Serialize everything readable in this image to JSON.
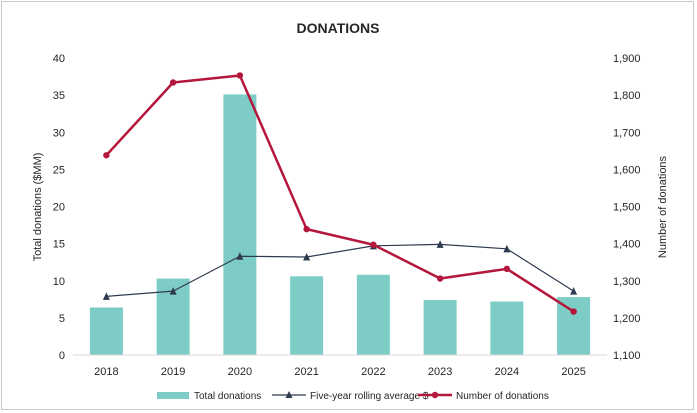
{
  "chart_data": {
    "title": "DONATIONS",
    "type": "bar+line",
    "categories": [
      "2018",
      "2019",
      "2020",
      "2021",
      "2022",
      "2023",
      "2024",
      "2025"
    ],
    "ylabel": "Total donations ($MM)",
    "y2label": "Number of donations",
    "ylim": [
      0,
      40
    ],
    "y2lim": [
      1100,
      1900
    ],
    "yticks": [
      "0",
      "5",
      "10",
      "15",
      "20",
      "25",
      "30",
      "35",
      "40"
    ],
    "y2ticks": [
      "1,100",
      "1,200",
      "1,300",
      "1,400",
      "1,500",
      "1,600",
      "1,700",
      "1,800",
      "1,900"
    ],
    "grid": false,
    "legend_position": "bottom",
    "series": [
      {
        "name": "Total donations",
        "kind": "bar",
        "axis": "left",
        "color": "#7dcdc6",
        "values": [
          6.4,
          10.3,
          35.1,
          10.6,
          10.8,
          7.4,
          7.2,
          7.8
        ]
      },
      {
        "name": "Five-year rolling average  $",
        "kind": "line",
        "marker": "triangle",
        "axis": "left",
        "color": "#2e3b4e",
        "values": [
          7.9,
          8.6,
          13.3,
          13.2,
          14.7,
          14.9,
          14.3,
          8.6
        ]
      },
      {
        "name": "Number of donations",
        "kind": "line",
        "marker": "circle",
        "axis": "right",
        "color": "#b5163b",
        "values": [
          1638,
          1834,
          1853,
          1439,
          1397,
          1306,
          1332,
          1217
        ]
      }
    ]
  }
}
